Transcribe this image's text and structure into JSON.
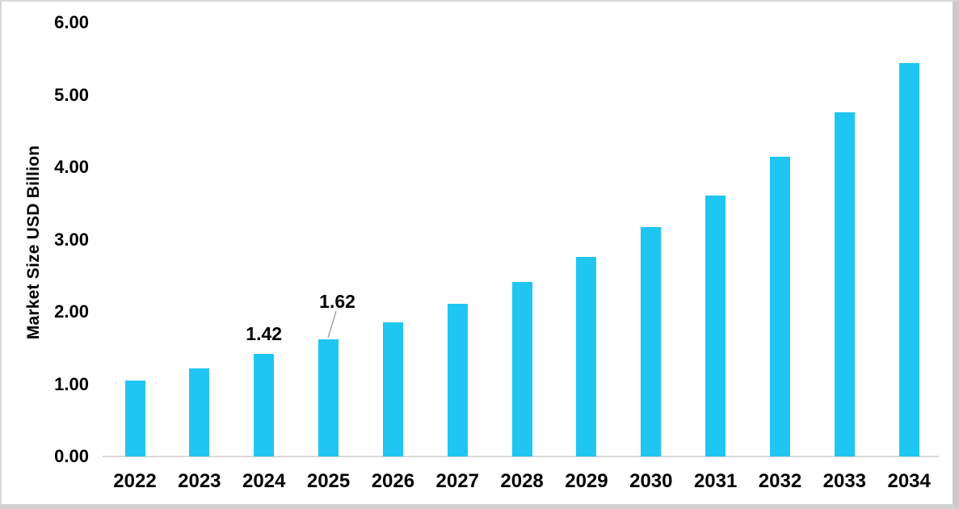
{
  "chart_data": {
    "type": "bar",
    "title": "",
    "ylabel": "Market Size USD Billion",
    "xlabel": "",
    "categories": [
      "2022",
      "2023",
      "2024",
      "2025",
      "2026",
      "2027",
      "2028",
      "2029",
      "2030",
      "2031",
      "2032",
      "2033",
      "2034"
    ],
    "values": [
      1.05,
      1.22,
      1.42,
      1.62,
      1.86,
      2.11,
      2.41,
      2.76,
      3.17,
      3.61,
      4.15,
      4.76,
      5.44
    ],
    "ylim": [
      0,
      6
    ],
    "ytick_labels": [
      "0.00",
      "1.00",
      "2.00",
      "3.00",
      "4.00",
      "5.00",
      "6.00"
    ],
    "grid": false,
    "legend_position": "none",
    "bar_color": "#1fc6f2",
    "axis_line_color": "#d9d9d9",
    "leader_line_color": "#a6a6a6",
    "text_color": "#000000",
    "data_labels": [
      {
        "category": "2024",
        "text": "1.42",
        "leader_line": false
      },
      {
        "category": "2025",
        "text": "1.62",
        "leader_line": true
      }
    ]
  }
}
